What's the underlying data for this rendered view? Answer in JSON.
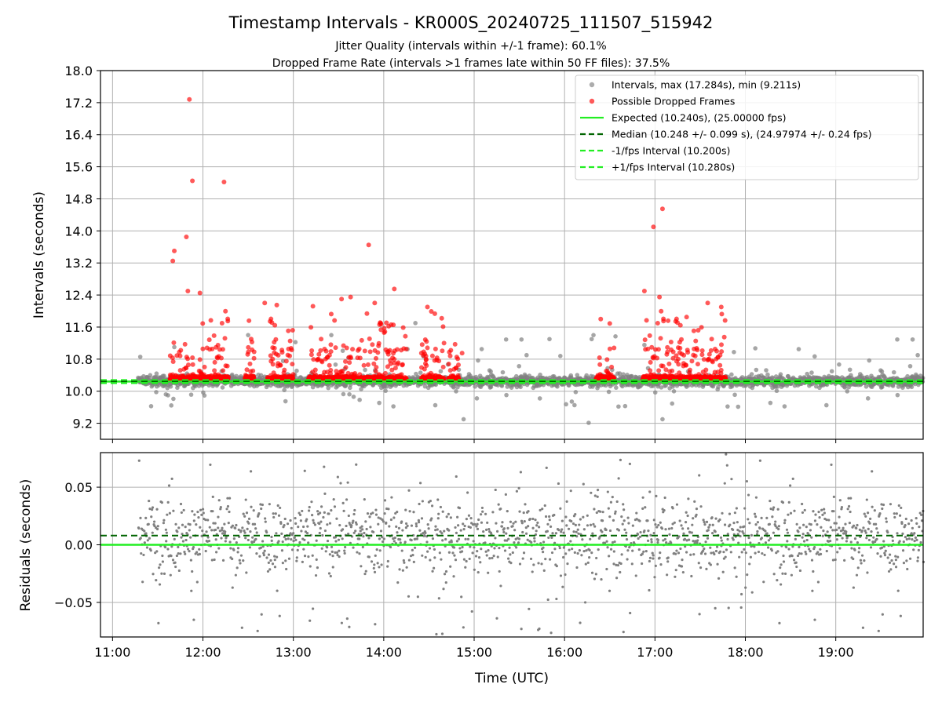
{
  "title": "Timestamp Intervals - KR000S_20240725_111507_515942",
  "subtitle_1": "Jitter Quality (intervals within +/-1 frame): 60.1%",
  "subtitle_2": "Dropped Frame Rate (intervals >1 frames late within 50 FF files): 37.5%",
  "colors": {
    "intervals": "#808080",
    "dropped": "#ff0000",
    "expected": "#22ee22",
    "median": "#006400",
    "grid": "#b0b0b0"
  },
  "chart_data": [
    {
      "type": "scatter",
      "panel": "top",
      "xlabel": "",
      "ylabel": "Intervals (seconds)",
      "xlim": [
        "10:52",
        "19:58"
      ],
      "ylim": [
        8.8,
        18.0
      ],
      "yticks": [
        "9.2",
        "10.0",
        "10.8",
        "11.6",
        "12.4",
        "13.2",
        "14.0",
        "14.8",
        "15.6",
        "16.4",
        "17.2",
        "18.0"
      ],
      "legend_position": "top-right",
      "legend": [
        {
          "label": "Intervals, max (17.284s), min (9.211s)",
          "kind": "marker",
          "color": "#808080"
        },
        {
          "label": "Possible Dropped Frames",
          "kind": "marker",
          "color": "#ff0000"
        },
        {
          "label": "Expected (10.240s), (25.00000 fps)",
          "kind": "solid",
          "color": "#22ee22"
        },
        {
          "label": "Median (10.248 +/- 0.099 s), (24.97974 +/- 0.24 fps)",
          "kind": "dashed",
          "color": "#006400"
        },
        {
          "label": "-1/fps Interval (10.200s)",
          "kind": "dashed",
          "color": "#22ee22"
        },
        {
          "label": "+1/fps Interval (10.280s)",
          "kind": "dashed",
          "color": "#22ee22"
        }
      ],
      "lines": {
        "expected": 10.24,
        "median": 10.248,
        "minus_1fps": 10.2,
        "plus_1fps": 10.28
      },
      "series": [
        {
          "name": "Intervals",
          "x_range": [
            "11:17",
            "19:58"
          ],
          "typical_range": [
            10.0,
            10.5
          ],
          "max": 17.284,
          "min": 9.211
        },
        {
          "name": "Possible Dropped Frames",
          "dense_bands": [
            [
              "11:38",
              "12:17"
            ],
            [
              "12:28",
              "12:34"
            ],
            [
              "12:43",
              "13:00"
            ],
            [
              "13:10",
              "14:15"
            ],
            [
              "14:25",
              "14:40"
            ],
            [
              "14:43",
              "14:50"
            ],
            [
              "16:21",
              "16:33"
            ],
            [
              "16:52",
              "17:47"
            ]
          ],
          "highlighted_points": [
            {
              "x": "11:51",
              "y": 17.28
            },
            {
              "x": "11:53",
              "y": 15.25
            },
            {
              "x": "12:14",
              "y": 15.22
            },
            {
              "x": "11:49",
              "y": 13.85
            },
            {
              "x": "11:41",
              "y": 13.5
            },
            {
              "x": "11:40",
              "y": 13.25
            },
            {
              "x": "13:50",
              "y": 13.65
            },
            {
              "x": "17:05",
              "y": 14.55
            },
            {
              "x": "16:59",
              "y": 14.1
            },
            {
              "x": "11:58",
              "y": 12.45
            },
            {
              "x": "11:50",
              "y": 12.5
            },
            {
              "x": "14:07",
              "y": 12.55
            },
            {
              "x": "16:53",
              "y": 12.5
            },
            {
              "x": "17:03",
              "y": 12.35
            },
            {
              "x": "17:35",
              "y": 12.2
            },
            {
              "x": "17:44",
              "y": 12.1
            },
            {
              "x": "14:29",
              "y": 12.1
            },
            {
              "x": "12:41",
              "y": 12.2
            },
            {
              "x": "12:49",
              "y": 12.15
            },
            {
              "x": "13:13",
              "y": 12.12
            },
            {
              "x": "13:38",
              "y": 12.35
            },
            {
              "x": "13:32",
              "y": 12.3
            },
            {
              "x": "13:54",
              "y": 12.2
            },
            {
              "x": "17:21",
              "y": 11.85
            },
            {
              "x": "16:24",
              "y": 11.8
            },
            {
              "x": "12:10",
              "y": 11.15
            },
            {
              "x": "14:25",
              "y": 10.95
            },
            {
              "x": "14:40",
              "y": 11.2
            },
            {
              "x": "14:52",
              "y": 10.95
            },
            {
              "x": "12:32",
              "y": 11.3
            },
            {
              "x": "14:15",
              "y": 11.05
            },
            {
              "x": "17:46",
              "y": 11.35
            }
          ]
        }
      ]
    },
    {
      "type": "scatter",
      "panel": "bottom",
      "xlabel": "Time (UTC)",
      "ylabel": "Residuals (seconds)",
      "xlim": [
        "10:52",
        "19:58"
      ],
      "ylim": [
        -0.08,
        0.08
      ],
      "xticks": [
        "11:00",
        "12:00",
        "13:00",
        "14:00",
        "15:00",
        "16:00",
        "17:00",
        "18:00",
        "19:00"
      ],
      "yticks": [
        "−0.05",
        "0.00",
        "0.05"
      ],
      "lines": {
        "expected": 0.0,
        "median": 0.008
      },
      "series": [
        {
          "name": "Residuals",
          "x_range": [
            "11:17",
            "19:58"
          ],
          "typical_range": [
            -0.04,
            0.05
          ],
          "clipped_beyond": [
            -0.08,
            0.08
          ]
        }
      ]
    }
  ]
}
